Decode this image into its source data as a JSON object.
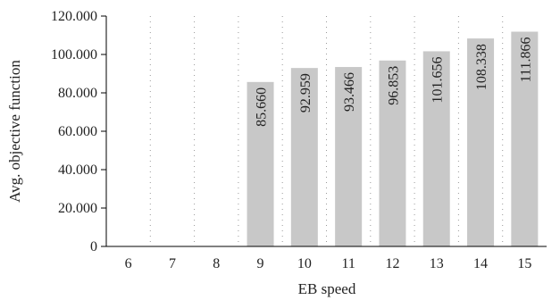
{
  "chart_data": {
    "type": "bar",
    "categories": [
      "6",
      "7",
      "8",
      "9",
      "10",
      "11",
      "12",
      "13",
      "14",
      "15"
    ],
    "values": [
      null,
      null,
      null,
      85.66,
      92.959,
      93.466,
      96.853,
      101.656,
      108.338,
      111.866
    ],
    "value_labels": [
      "",
      "",
      "",
      "85.660",
      "92.959",
      "93.466",
      "96.853",
      "101.656",
      "108.338",
      "111.866"
    ],
    "y_ticks": [
      0,
      20,
      40,
      60,
      80,
      100,
      120
    ],
    "y_tick_labels": [
      "0",
      "20.000",
      "40.000",
      "60.000",
      "80.000",
      "100.000",
      "120.000"
    ],
    "title": "",
    "xlabel": "EB speed",
    "ylabel": "Avg. objective function",
    "ylim": [
      0,
      120
    ],
    "grid": "vertical-dotted",
    "bar_color": "#c8c8c8"
  }
}
